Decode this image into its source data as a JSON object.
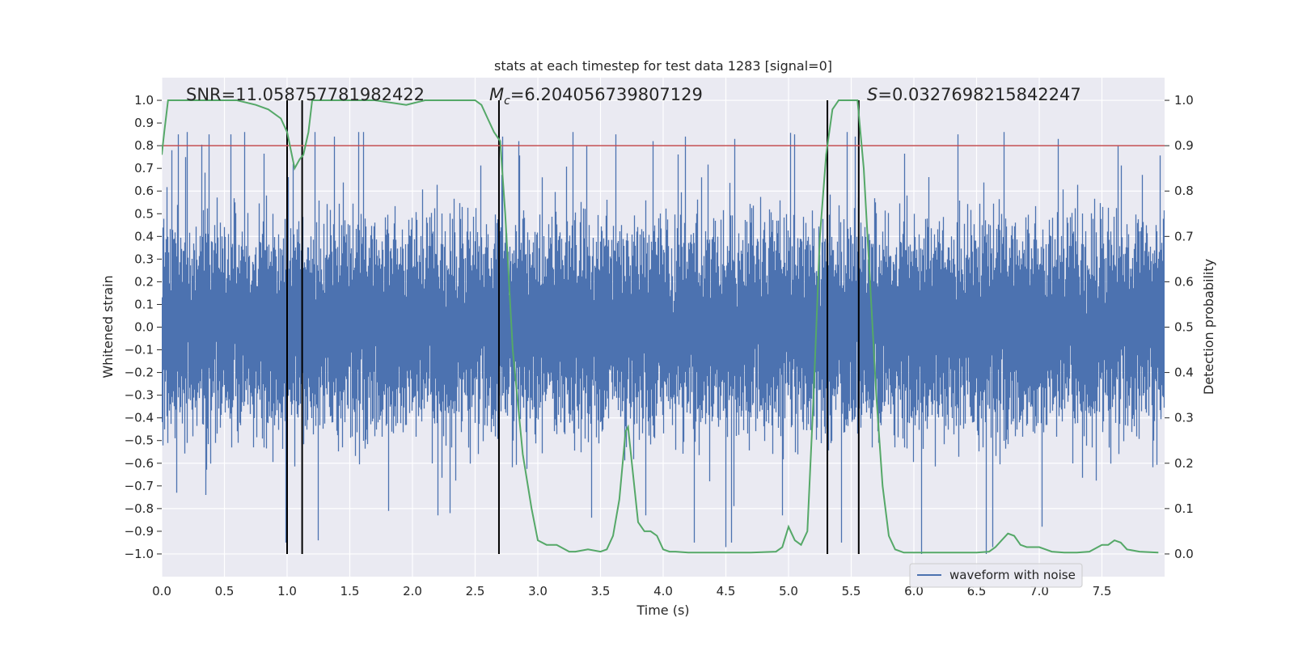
{
  "chart_data": {
    "type": "line",
    "title": "stats at each timestep for test data 1283 [signal=0]",
    "xlabel": "Time (s)",
    "ylabel": "Whitened strain",
    "y2label": "Detection probability",
    "xlim": [
      0.0,
      8.0
    ],
    "ylim": [
      -1.1,
      1.1
    ],
    "y2lim": [
      -0.05,
      1.05
    ],
    "grid": true,
    "xticks": [
      0.0,
      0.5,
      1.0,
      1.5,
      2.0,
      2.5,
      3.0,
      3.5,
      4.0,
      4.5,
      5.0,
      5.5,
      6.0,
      6.5,
      7.0,
      7.5
    ],
    "xtick_labels": [
      "0.0",
      "0.5",
      "1.0",
      "1.5",
      "2.0",
      "2.5",
      "3.0",
      "3.5",
      "4.0",
      "4.5",
      "5.0",
      "5.5",
      "6.0",
      "6.5",
      "7.0",
      "7.5"
    ],
    "yticks": [
      1.0,
      0.9,
      0.8,
      0.7,
      0.6,
      0.5,
      0.4,
      0.3,
      0.2,
      0.1,
      0.0,
      -0.1,
      -0.2,
      -0.3,
      -0.4,
      -0.5,
      -0.6,
      -0.7,
      -0.8,
      -0.9,
      -1.0
    ],
    "ytick_labels": [
      "1.0",
      "0.9",
      "0.8",
      "0.7",
      "0.6",
      "0.5",
      "0.4",
      "0.3",
      "0.2",
      "0.1",
      "0.0",
      "−0.1",
      "−0.2",
      "−0.3",
      "−0.4",
      "−0.5",
      "−0.6",
      "−0.7",
      "−0.8",
      "−0.9",
      "−1.0"
    ],
    "y2ticks": [
      1.0,
      0.9,
      0.8,
      0.7,
      0.6,
      0.5,
      0.4,
      0.3,
      0.2,
      0.1,
      0.0
    ],
    "y2tick_labels": [
      "1.0",
      "0.9",
      "0.8",
      "0.7",
      "0.6",
      "0.5",
      "0.4",
      "0.3",
      "0.2",
      "0.1",
      "0.0"
    ],
    "legend": {
      "label": "waveform with noise",
      "placement": "lower-right"
    },
    "threshold": {
      "value": 0.9,
      "axis": "right",
      "color": "#c44e52"
    },
    "vlines": [
      1.0,
      1.12,
      2.69,
      5.31,
      5.56
    ],
    "annotations": {
      "snr": "SNR=11.058757781982422",
      "mc_symbol": "M",
      "mc_subscript": "c",
      "mc_value": "=6.204056739807129",
      "s_symbol": "S",
      "s_value": "=0.0327698215842247"
    },
    "waveform": {
      "name": "waveform with noise",
      "color": "#4c72b0",
      "duration_s": 8.0,
      "sample_rate_hz": 2048,
      "core_std": 0.2,
      "peak_max": 0.86,
      "trough_min": -0.95,
      "notable_peaks": [
        [
          0.08,
          0.78
        ],
        [
          0.13,
          0.85
        ],
        [
          0.19,
          0.75
        ],
        [
          0.2,
          0.86
        ],
        [
          0.38,
          0.85
        ],
        [
          0.55,
          0.85
        ],
        [
          0.66,
          0.86
        ],
        [
          1.05,
          0.72
        ],
        [
          1.22,
          0.86
        ],
        [
          1.38,
          0.84
        ],
        [
          1.57,
          0.86
        ],
        [
          2.72,
          0.84
        ],
        [
          2.85,
          0.82
        ],
        [
          3.39,
          0.8
        ],
        [
          3.62,
          0.85
        ],
        [
          3.92,
          0.82
        ],
        [
          4.18,
          0.84
        ],
        [
          4.57,
          0.83
        ],
        [
          5.05,
          0.85
        ],
        [
          5.53,
          0.84
        ],
        [
          6.35,
          0.85
        ],
        [
          7.15,
          0.83
        ],
        [
          7.63,
          0.8
        ]
      ],
      "notable_troughs": [
        [
          0.12,
          -0.73
        ],
        [
          0.35,
          -0.74
        ],
        [
          0.99,
          -0.95
        ],
        [
          1.25,
          -0.94
        ],
        [
          1.81,
          -0.81
        ],
        [
          2.2,
          -0.83
        ],
        [
          2.3,
          -0.82
        ],
        [
          3.43,
          -0.84
        ],
        [
          3.86,
          -0.83
        ],
        [
          4.5,
          -0.97
        ],
        [
          4.95,
          -0.83
        ],
        [
          6.06,
          -1.0
        ],
        [
          6.58,
          -1.0
        ],
        [
          6.63,
          -0.97
        ],
        [
          7.02,
          -0.88
        ]
      ]
    },
    "probability": {
      "name": "detection probability",
      "color": "#55a868",
      "axis": "right",
      "x": [
        0.0,
        0.02,
        0.05,
        0.1,
        0.2,
        0.4,
        0.6,
        0.75,
        0.85,
        0.95,
        1.0,
        1.06,
        1.1,
        1.13,
        1.17,
        1.2,
        1.3,
        1.5,
        1.7,
        1.95,
        2.1,
        2.3,
        2.5,
        2.55,
        2.6,
        2.65,
        2.7,
        2.74,
        2.8,
        2.88,
        2.95,
        3.0,
        3.07,
        3.15,
        3.25,
        3.3,
        3.4,
        3.5,
        3.55,
        3.6,
        3.65,
        3.7,
        3.72,
        3.75,
        3.8,
        3.85,
        3.9,
        3.95,
        4.0,
        4.05,
        4.1,
        4.2,
        4.3,
        4.5,
        4.7,
        4.9,
        4.95,
        5.0,
        5.05,
        5.1,
        5.15,
        5.2,
        5.25,
        5.3,
        5.35,
        5.4,
        5.45,
        5.5,
        5.55,
        5.6,
        5.65,
        5.7,
        5.75,
        5.8,
        5.85,
        5.92,
        6.0,
        6.2,
        6.5,
        6.6,
        6.65,
        6.7,
        6.75,
        6.8,
        6.85,
        6.9,
        7.0,
        7.05,
        7.1,
        7.2,
        7.3,
        7.4,
        7.5,
        7.55,
        7.6,
        7.65,
        7.7,
        7.8,
        7.95
      ],
      "y": [
        0.88,
        0.93,
        1.0,
        1.0,
        1.0,
        1.0,
        1.0,
        0.99,
        0.98,
        0.96,
        0.93,
        0.85,
        0.87,
        0.88,
        0.93,
        1.0,
        1.0,
        1.0,
        1.0,
        0.99,
        1.0,
        1.0,
        1.0,
        0.99,
        0.96,
        0.93,
        0.91,
        0.75,
        0.45,
        0.22,
        0.1,
        0.03,
        0.02,
        0.02,
        0.005,
        0.005,
        0.01,
        0.005,
        0.01,
        0.04,
        0.12,
        0.27,
        0.28,
        0.2,
        0.07,
        0.05,
        0.05,
        0.04,
        0.01,
        0.005,
        0.005,
        0.003,
        0.003,
        0.003,
        0.003,
        0.005,
        0.015,
        0.06,
        0.03,
        0.02,
        0.05,
        0.35,
        0.7,
        0.88,
        0.98,
        1.0,
        1.0,
        1.0,
        1.0,
        0.85,
        0.6,
        0.35,
        0.15,
        0.04,
        0.01,
        0.003,
        0.003,
        0.003,
        0.003,
        0.005,
        0.015,
        0.03,
        0.045,
        0.04,
        0.02,
        0.015,
        0.015,
        0.01,
        0.005,
        0.003,
        0.003,
        0.005,
        0.02,
        0.02,
        0.03,
        0.025,
        0.01,
        0.005,
        0.003
      ]
    }
  }
}
